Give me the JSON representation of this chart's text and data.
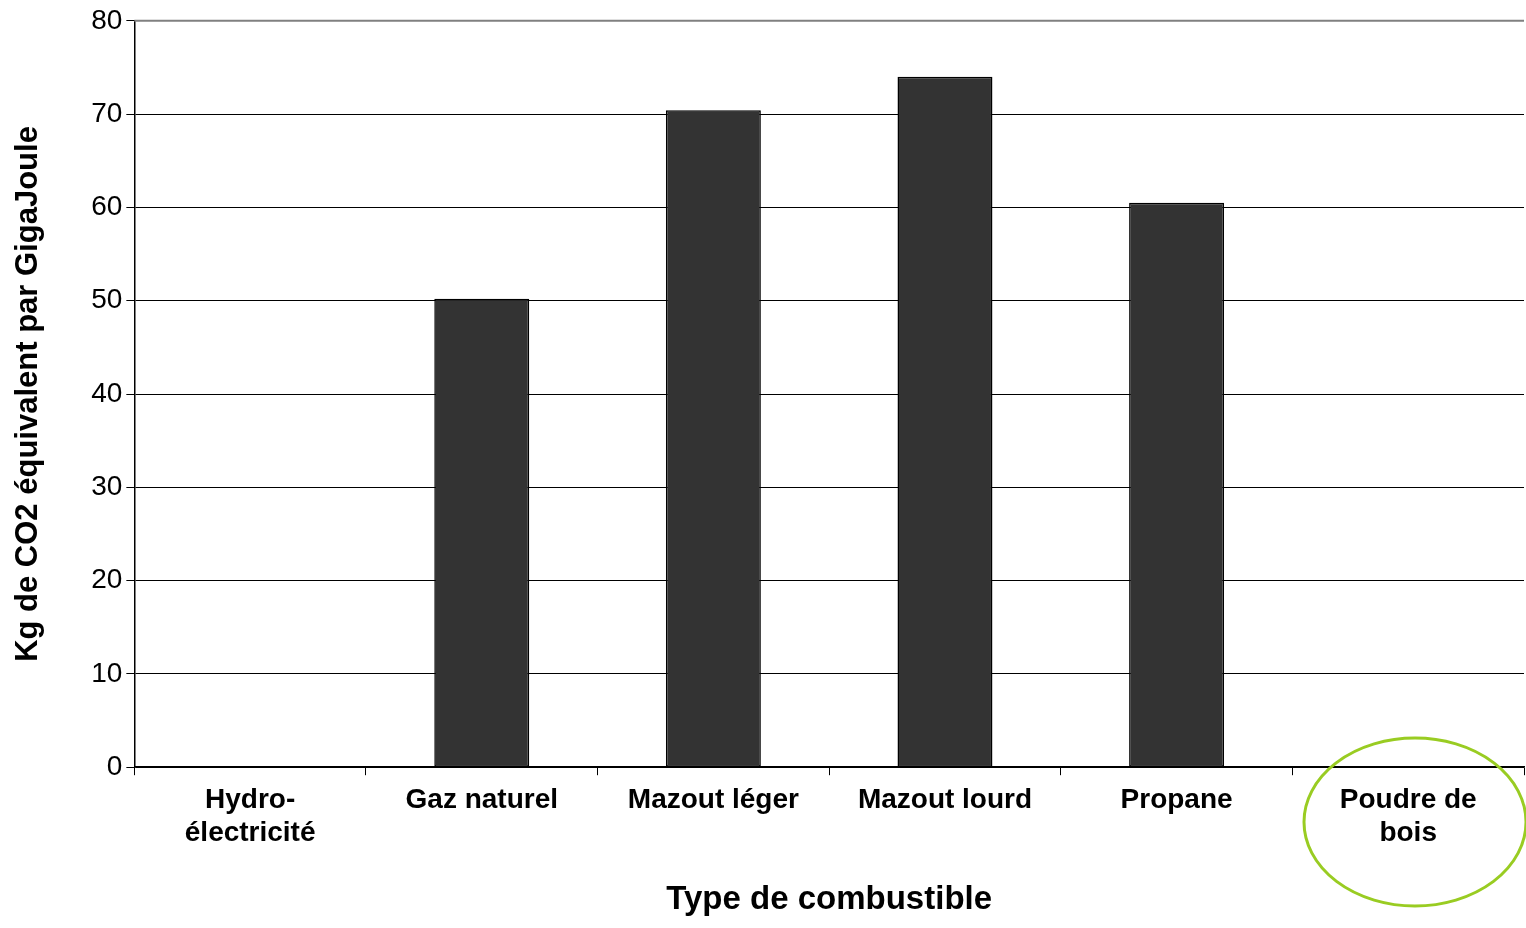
{
  "chart_data": {
    "type": "bar",
    "xlabel": "Type de combustible",
    "ylabel": "Kg de CO2 équivalent par GigaJoule",
    "categories": [
      "Hydro-électricité",
      "Gaz naturel",
      "Mazout léger",
      "Mazout lourd",
      "Propane",
      "Poudre de bois"
    ],
    "values": [
      0,
      50.2,
      70.4,
      74.0,
      60.5,
      0
    ],
    "color": "#333333",
    "ylim": [
      0,
      80
    ],
    "yticks": [
      0,
      10,
      20,
      30,
      40,
      50,
      60,
      70,
      80
    ],
    "grid": "y"
  }
}
